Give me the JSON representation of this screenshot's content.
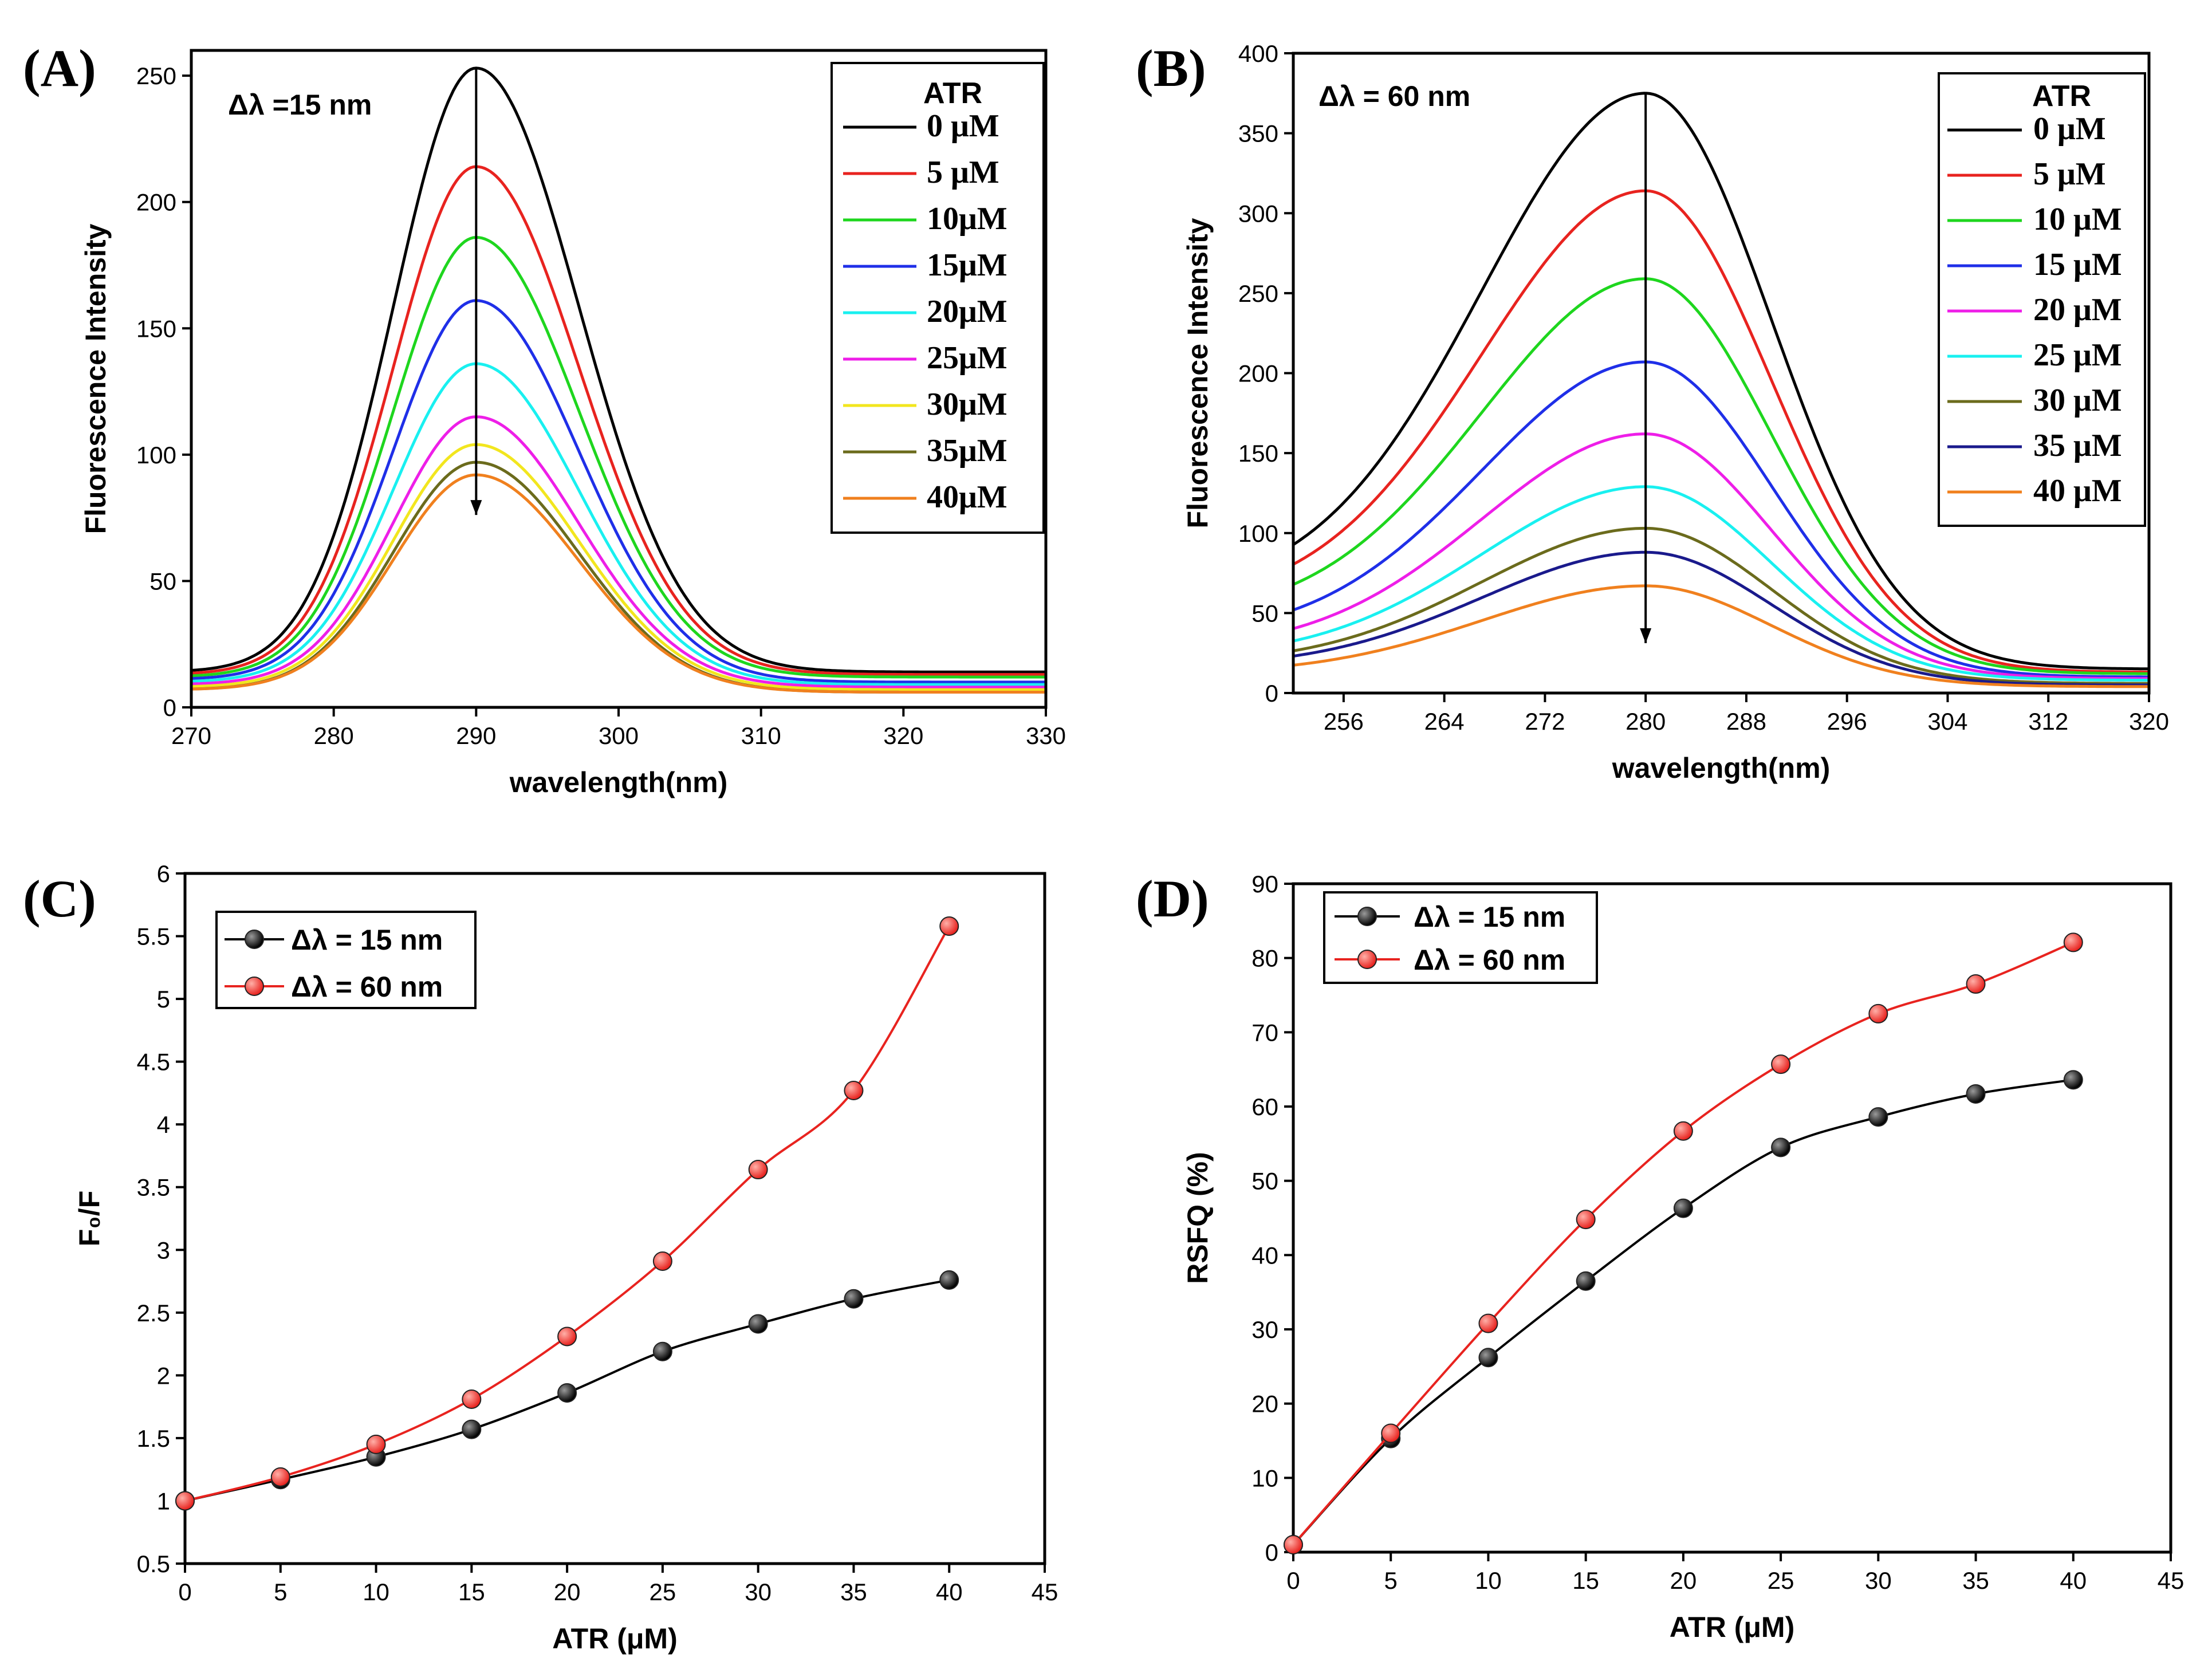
{
  "chart_data": [
    {
      "id": "A",
      "panel_label": "(A)",
      "type": "line",
      "annotation": "Δλ =15 nm",
      "xlabel": "wavelength(nm)",
      "ylabel": "Fluorescence Intensity",
      "xlim": [
        270,
        330
      ],
      "ylim": [
        0,
        260
      ],
      "xticks": [
        270,
        280,
        290,
        300,
        310,
        320,
        330
      ],
      "yticks": [
        0,
        50,
        100,
        150,
        200,
        250
      ],
      "legend_title": "ATR",
      "peak_x": 290,
      "sigma_left": 5.8,
      "sigma_right": 7.2,
      "series": [
        {
          "name": "0 μM",
          "color": "#000000",
          "peak": 253,
          "baseline_left": 14,
          "baseline_right": 14
        },
        {
          "name": "5 μM",
          "color": "#e8231f",
          "peak": 214,
          "baseline_left": 13,
          "baseline_right": 13
        },
        {
          "name": "10μM",
          "color": "#1ed61e",
          "peak": 186,
          "baseline_left": 12,
          "baseline_right": 12
        },
        {
          "name": "15μM",
          "color": "#1f2fe8",
          "peak": 161,
          "baseline_left": 11,
          "baseline_right": 10
        },
        {
          "name": "20μM",
          "color": "#19f0f0",
          "peak": 136,
          "baseline_left": 10,
          "baseline_right": 9
        },
        {
          "name": "25μM",
          "color": "#ee1ee8",
          "peak": 115,
          "baseline_left": 9,
          "baseline_right": 8
        },
        {
          "name": "30μM",
          "color": "#f2e61e",
          "peak": 104,
          "baseline_left": 8,
          "baseline_right": 7
        },
        {
          "name": "35μM",
          "color": "#6b6b1c",
          "peak": 97,
          "baseline_left": 7,
          "baseline_right": 6
        },
        {
          "name": "40μM",
          "color": "#f0801e",
          "peak": 92,
          "baseline_left": 7,
          "baseline_right": 6
        }
      ]
    },
    {
      "id": "B",
      "panel_label": "(B)",
      "type": "line",
      "annotation": "Δλ = 60 nm",
      "xlabel": "wavelength(nm)",
      "ylabel": "Fluorescence Intensity",
      "xlim": [
        252,
        320
      ],
      "ylim": [
        0,
        400
      ],
      "xticks": [
        256,
        264,
        272,
        280,
        288,
        296,
        304,
        312,
        320
      ],
      "yticks": [
        0,
        50,
        100,
        150,
        200,
        250,
        300,
        350,
        400
      ],
      "legend_title": "ATR",
      "peak_x": 280,
      "sigma_left": 13,
      "sigma_right": 10,
      "series": [
        {
          "name": "0 μM",
          "color": "#000000",
          "peak": 375,
          "baseline_left": 62,
          "baseline_right": 15
        },
        {
          "name": "5 μM",
          "color": "#e8231f",
          "peak": 314,
          "baseline_left": 55,
          "baseline_right": 13
        },
        {
          "name": "10 μM",
          "color": "#1ed61e",
          "peak": 259,
          "baseline_left": 47,
          "baseline_right": 12
        },
        {
          "name": "15 μM",
          "color": "#1f2fe8",
          "peak": 207,
          "baseline_left": 35,
          "baseline_right": 10
        },
        {
          "name": "20 μM",
          "color": "#ee1ee8",
          "peak": 162,
          "baseline_left": 27,
          "baseline_right": 9
        },
        {
          "name": "25 μM",
          "color": "#19f0f0",
          "peak": 129,
          "baseline_left": 22,
          "baseline_right": 8
        },
        {
          "name": "30 μM",
          "color": "#6b6b1c",
          "peak": 103,
          "baseline_left": 18,
          "baseline_right": 6
        },
        {
          "name": "35 μM",
          "color": "#1a1a8c",
          "peak": 88,
          "baseline_left": 16,
          "baseline_right": 5
        },
        {
          "name": "40 μM",
          "color": "#f0801e",
          "peak": 67,
          "baseline_left": 12,
          "baseline_right": 4
        }
      ]
    },
    {
      "id": "C",
      "panel_label": "(C)",
      "type": "line",
      "xlabel": "ATR (μM)",
      "ylabel": "F₀/F",
      "xlim": [
        0,
        45
      ],
      "ylim": [
        0.5,
        6
      ],
      "xticks": [
        0,
        5,
        10,
        15,
        20,
        25,
        30,
        35,
        40,
        45
      ],
      "yticks": [
        0.5,
        1,
        1.5,
        2,
        2.5,
        3,
        3.5,
        4,
        4.5,
        5,
        5.5,
        6
      ],
      "x": [
        0,
        5,
        10,
        15,
        20,
        25,
        30,
        35,
        40
      ],
      "series": [
        {
          "name": "Δλ = 15 nm",
          "color": "#000000",
          "values": [
            1.0,
            1.17,
            1.35,
            1.57,
            1.86,
            2.19,
            2.41,
            2.61,
            2.76
          ]
        },
        {
          "name": "Δλ = 60 nm",
          "color": "#e8231f",
          "values": [
            1.0,
            1.19,
            1.45,
            1.81,
            2.31,
            2.91,
            3.64,
            4.27,
            5.58
          ]
        }
      ]
    },
    {
      "id": "D",
      "panel_label": "(D)",
      "type": "line",
      "xlabel": "ATR (μM)",
      "ylabel": "RSFQ (%)",
      "xlim": [
        0,
        45
      ],
      "ylim": [
        0,
        90
      ],
      "xticks": [
        0,
        5,
        10,
        15,
        20,
        25,
        30,
        35,
        40,
        45
      ],
      "yticks": [
        0,
        10,
        20,
        30,
        40,
        50,
        60,
        70,
        80,
        90
      ],
      "x": [
        0,
        5,
        10,
        15,
        20,
        25,
        30,
        35,
        40
      ],
      "series": [
        {
          "name": "Δλ = 15 nm",
          "color": "#000000",
          "values": [
            1.0,
            15.3,
            26.2,
            36.5,
            46.3,
            54.5,
            58.6,
            61.7,
            63.6
          ]
        },
        {
          "name": "Δλ = 60 nm",
          "color": "#e8231f",
          "values": [
            1.0,
            16.0,
            30.8,
            44.8,
            56.7,
            65.7,
            72.5,
            76.5,
            82.1
          ]
        }
      ]
    }
  ]
}
